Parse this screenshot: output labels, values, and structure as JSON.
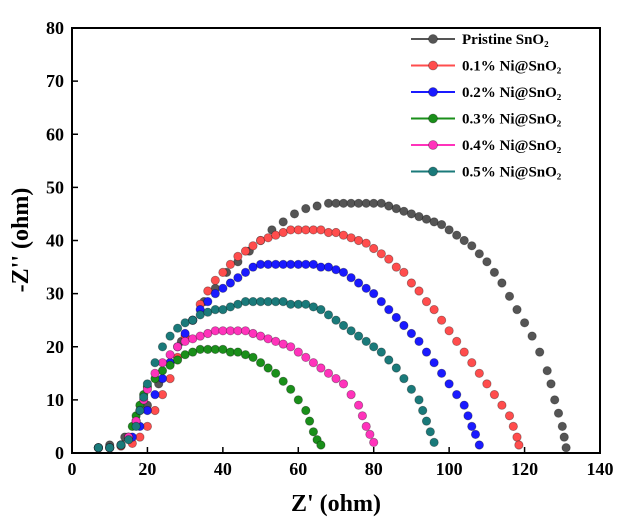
{
  "chart_data": {
    "type": "scatter",
    "title": "",
    "xlabel": "Z' (ohm)",
    "ylabel": "-Z'' (ohm)",
    "xlim": [
      0,
      140
    ],
    "ylim": [
      0,
      80
    ],
    "xticks": [
      0,
      20,
      40,
      60,
      80,
      100,
      120,
      140
    ],
    "yticks": [
      0,
      10,
      20,
      30,
      40,
      50,
      60,
      70,
      80
    ],
    "grid": false,
    "legend_position": "top-right",
    "series": [
      {
        "name": "Pristine SnO₂",
        "color": "#555555",
        "points": [
          [
            7,
            1
          ],
          [
            10,
            1.5
          ],
          [
            14,
            3
          ],
          [
            17,
            6
          ],
          [
            20,
            9
          ],
          [
            23,
            13
          ],
          [
            26,
            17
          ],
          [
            29,
            21
          ],
          [
            32,
            25
          ],
          [
            35,
            28.5
          ],
          [
            38,
            31
          ],
          [
            41,
            34
          ],
          [
            44,
            36
          ],
          [
            47,
            38
          ],
          [
            50,
            40
          ],
          [
            53,
            42
          ],
          [
            56,
            43.5
          ],
          [
            59,
            45
          ],
          [
            62,
            46
          ],
          [
            65,
            46.5
          ],
          [
            68,
            47
          ],
          [
            70,
            47
          ],
          [
            72,
            47
          ],
          [
            74,
            47
          ],
          [
            76,
            47
          ],
          [
            78,
            47
          ],
          [
            80,
            47
          ],
          [
            82,
            47
          ],
          [
            84,
            46.5
          ],
          [
            86,
            46
          ],
          [
            88,
            45.5
          ],
          [
            90,
            45
          ],
          [
            92,
            44.5
          ],
          [
            94,
            44
          ],
          [
            96,
            43.5
          ],
          [
            98,
            43
          ],
          [
            100,
            42
          ],
          [
            102,
            41
          ],
          [
            104,
            40
          ],
          [
            106,
            39
          ],
          [
            108,
            37.5
          ],
          [
            110,
            36
          ],
          [
            112,
            34
          ],
          [
            114,
            32
          ],
          [
            116,
            29.5
          ],
          [
            118,
            27
          ],
          [
            120,
            24.5
          ],
          [
            122,
            22
          ],
          [
            124,
            19
          ],
          [
            126,
            15.5
          ],
          [
            127,
            13
          ],
          [
            128,
            10
          ],
          [
            129,
            7.5
          ],
          [
            130,
            5
          ],
          [
            130.5,
            3
          ],
          [
            131,
            1
          ]
        ]
      },
      {
        "name": "0.1% Ni@SnO₂",
        "color": "#ff4d4d",
        "points": [
          [
            7,
            1
          ],
          [
            10,
            1
          ],
          [
            13,
            1.3
          ],
          [
            16,
            1.8
          ],
          [
            18,
            3
          ],
          [
            20,
            5
          ],
          [
            22,
            8
          ],
          [
            24,
            11
          ],
          [
            26,
            14
          ],
          [
            28,
            18
          ],
          [
            30,
            22
          ],
          [
            32,
            25
          ],
          [
            34,
            28
          ],
          [
            36,
            30.5
          ],
          [
            38,
            32.5
          ],
          [
            40,
            34
          ],
          [
            42,
            35.5
          ],
          [
            44,
            37
          ],
          [
            46,
            38
          ],
          [
            48,
            39
          ],
          [
            50,
            40
          ],
          [
            52,
            40.5
          ],
          [
            54,
            41
          ],
          [
            56,
            41.5
          ],
          [
            58,
            42
          ],
          [
            60,
            42
          ],
          [
            62,
            42
          ],
          [
            64,
            42
          ],
          [
            66,
            42
          ],
          [
            68,
            41.5
          ],
          [
            70,
            41.5
          ],
          [
            72,
            41
          ],
          [
            74,
            40.5
          ],
          [
            76,
            40
          ],
          [
            78,
            39.5
          ],
          [
            80,
            38.5
          ],
          [
            82,
            37.5
          ],
          [
            84,
            36.5
          ],
          [
            86,
            35
          ],
          [
            88,
            34
          ],
          [
            90,
            32
          ],
          [
            92,
            30.5
          ],
          [
            94,
            28.5
          ],
          [
            96,
            27
          ],
          [
            98,
            25
          ],
          [
            100,
            23
          ],
          [
            102,
            21
          ],
          [
            104,
            19
          ],
          [
            106,
            17
          ],
          [
            108,
            15
          ],
          [
            110,
            13
          ],
          [
            112,
            11
          ],
          [
            114,
            9
          ],
          [
            116,
            7
          ],
          [
            117,
            5
          ],
          [
            118,
            3
          ],
          [
            118.5,
            1.5
          ]
        ]
      },
      {
        "name": "0.2% Ni@SnO₂",
        "color": "#1a1aff",
        "points": [
          [
            7,
            1
          ],
          [
            10,
            1
          ],
          [
            13,
            1.5
          ],
          [
            16,
            3
          ],
          [
            18,
            5
          ],
          [
            20,
            8
          ],
          [
            22,
            11
          ],
          [
            24,
            14
          ],
          [
            26,
            17
          ],
          [
            28,
            20
          ],
          [
            30,
            22.5
          ],
          [
            32,
            25
          ],
          [
            34,
            27
          ],
          [
            36,
            28.5
          ],
          [
            38,
            30
          ],
          [
            40,
            31
          ],
          [
            42,
            32
          ],
          [
            44,
            33
          ],
          [
            46,
            34
          ],
          [
            48,
            35
          ],
          [
            50,
            35.5
          ],
          [
            52,
            35.5
          ],
          [
            54,
            35.5
          ],
          [
            56,
            35.5
          ],
          [
            58,
            35.5
          ],
          [
            60,
            35.5
          ],
          [
            62,
            35.5
          ],
          [
            64,
            35.5
          ],
          [
            66,
            35
          ],
          [
            68,
            35
          ],
          [
            70,
            34.5
          ],
          [
            72,
            34
          ],
          [
            74,
            33
          ],
          [
            76,
            32
          ],
          [
            78,
            31
          ],
          [
            80,
            30
          ],
          [
            82,
            28.5
          ],
          [
            84,
            27
          ],
          [
            86,
            25.5
          ],
          [
            88,
            24
          ],
          [
            90,
            22.5
          ],
          [
            92,
            21
          ],
          [
            94,
            19
          ],
          [
            96,
            17
          ],
          [
            98,
            15
          ],
          [
            100,
            13
          ],
          [
            102,
            11
          ],
          [
            104,
            9
          ],
          [
            105,
            7
          ],
          [
            106,
            5
          ],
          [
            107,
            3.5
          ],
          [
            108,
            1.5
          ]
        ]
      },
      {
        "name": "0.3% Ni@SnO₂",
        "color": "#1a8f1a",
        "points": [
          [
            7,
            1
          ],
          [
            10,
            1
          ],
          [
            13,
            1.5
          ],
          [
            15,
            3
          ],
          [
            16,
            5
          ],
          [
            17,
            7
          ],
          [
            18,
            9
          ],
          [
            19,
            11
          ],
          [
            20,
            12.5
          ],
          [
            22,
            14
          ],
          [
            24,
            15.5
          ],
          [
            26,
            16.5
          ],
          [
            28,
            17.5
          ],
          [
            30,
            18.5
          ],
          [
            32,
            19
          ],
          [
            34,
            19.5
          ],
          [
            36,
            19.5
          ],
          [
            38,
            19.5
          ],
          [
            40,
            19.5
          ],
          [
            42,
            19
          ],
          [
            44,
            19
          ],
          [
            46,
            18.5
          ],
          [
            48,
            18
          ],
          [
            50,
            17
          ],
          [
            52,
            16
          ],
          [
            54,
            15
          ],
          [
            56,
            13.5
          ],
          [
            58,
            12
          ],
          [
            60,
            10
          ],
          [
            62,
            8
          ],
          [
            63,
            6
          ],
          [
            64,
            4
          ],
          [
            65,
            2.5
          ],
          [
            66,
            1.5
          ]
        ]
      },
      {
        "name": "0.4% Ni@SnO₂",
        "color": "#ff33bb",
        "points": [
          [
            7,
            1
          ],
          [
            10,
            1
          ],
          [
            13,
            1.5
          ],
          [
            15,
            3
          ],
          [
            17,
            6
          ],
          [
            18,
            8
          ],
          [
            19,
            10
          ],
          [
            20,
            12
          ],
          [
            22,
            15
          ],
          [
            24,
            17
          ],
          [
            26,
            18.5
          ],
          [
            28,
            20
          ],
          [
            30,
            21
          ],
          [
            32,
            21.5
          ],
          [
            34,
            22
          ],
          [
            36,
            22.5
          ],
          [
            38,
            23
          ],
          [
            40,
            23
          ],
          [
            42,
            23
          ],
          [
            44,
            23
          ],
          [
            46,
            23
          ],
          [
            48,
            22.5
          ],
          [
            50,
            22
          ],
          [
            52,
            21.5
          ],
          [
            54,
            21
          ],
          [
            56,
            20.5
          ],
          [
            58,
            20
          ],
          [
            60,
            19
          ],
          [
            62,
            18
          ],
          [
            64,
            17
          ],
          [
            66,
            16
          ],
          [
            68,
            15
          ],
          [
            70,
            14
          ],
          [
            72,
            13
          ],
          [
            74,
            11
          ],
          [
            76,
            9
          ],
          [
            77,
            7
          ],
          [
            78,
            5
          ],
          [
            79,
            3.5
          ],
          [
            80,
            2
          ]
        ]
      },
      {
        "name": "0.5% Ni@SnO₂",
        "color": "#1a7a7a",
        "points": [
          [
            7,
            1
          ],
          [
            10,
            1
          ],
          [
            13,
            1.5
          ],
          [
            15,
            2.5
          ],
          [
            17,
            5
          ],
          [
            18,
            8
          ],
          [
            19,
            10.5
          ],
          [
            20,
            13
          ],
          [
            22,
            17
          ],
          [
            24,
            20
          ],
          [
            26,
            22
          ],
          [
            28,
            23.5
          ],
          [
            30,
            24.5
          ],
          [
            32,
            25
          ],
          [
            34,
            26
          ],
          [
            36,
            26.5
          ],
          [
            38,
            27
          ],
          [
            40,
            27
          ],
          [
            42,
            27.5
          ],
          [
            44,
            28
          ],
          [
            46,
            28.5
          ],
          [
            48,
            28.5
          ],
          [
            50,
            28.5
          ],
          [
            52,
            28.5
          ],
          [
            54,
            28.5
          ],
          [
            56,
            28.5
          ],
          [
            58,
            28
          ],
          [
            60,
            28
          ],
          [
            62,
            28
          ],
          [
            64,
            27.5
          ],
          [
            66,
            27
          ],
          [
            68,
            26
          ],
          [
            70,
            25
          ],
          [
            72,
            24
          ],
          [
            74,
            23
          ],
          [
            76,
            22
          ],
          [
            78,
            21
          ],
          [
            80,
            20
          ],
          [
            82,
            19
          ],
          [
            84,
            17.5
          ],
          [
            86,
            16
          ],
          [
            88,
            14
          ],
          [
            90,
            12
          ],
          [
            92,
            10
          ],
          [
            93,
            8
          ],
          [
            94,
            6
          ],
          [
            95,
            4
          ],
          [
            96,
            2
          ]
        ]
      }
    ]
  }
}
